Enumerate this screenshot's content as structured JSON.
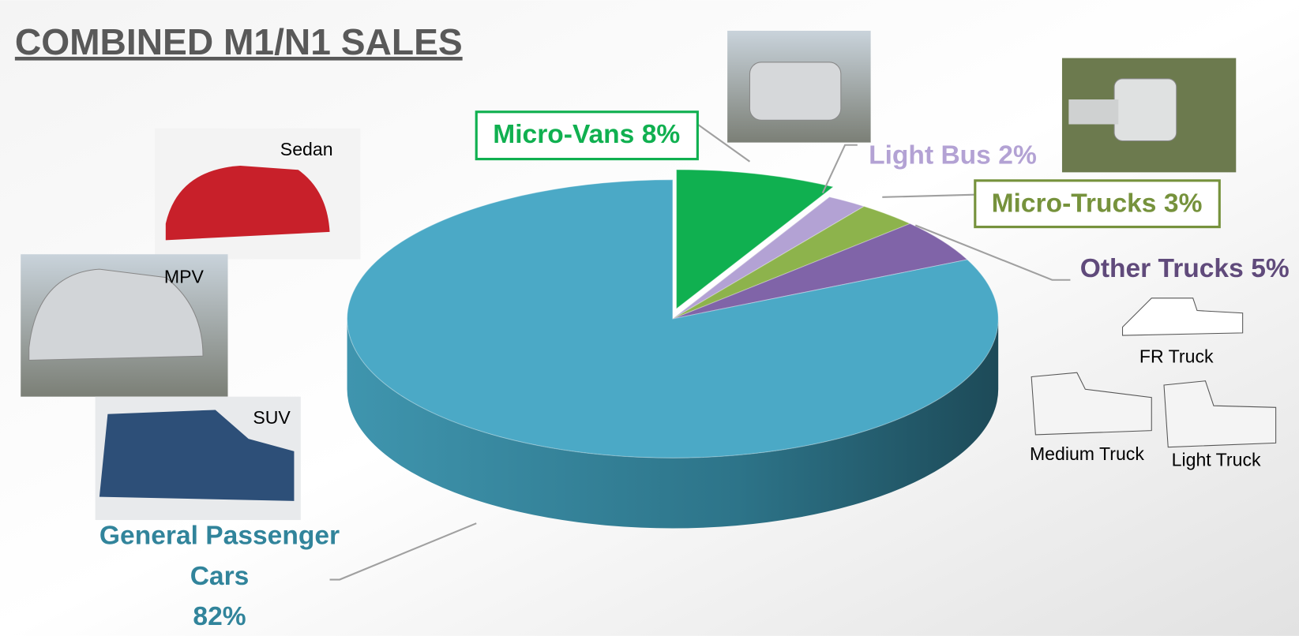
{
  "chart_data": {
    "type": "pie",
    "title": "COMBINED M1/N1 SALES",
    "categories": [
      "Micro-Vans",
      "Light Bus",
      "Micro-Trucks",
      "Other Trucks",
      "General Passenger Cars"
    ],
    "values": [
      8,
      2,
      3,
      5,
      82
    ],
    "value_labels": [
      "8%",
      "2%",
      "3%",
      "5%",
      "82%"
    ],
    "colors": [
      "#10b050",
      "#b3a2d4",
      "#8db34c",
      "#8064a8",
      "#4ba9c6"
    ],
    "annotations": [
      "Sedan",
      "MPV",
      "SUV",
      "FR Truck",
      "Medium Truck",
      "Light Truck"
    ]
  }
}
